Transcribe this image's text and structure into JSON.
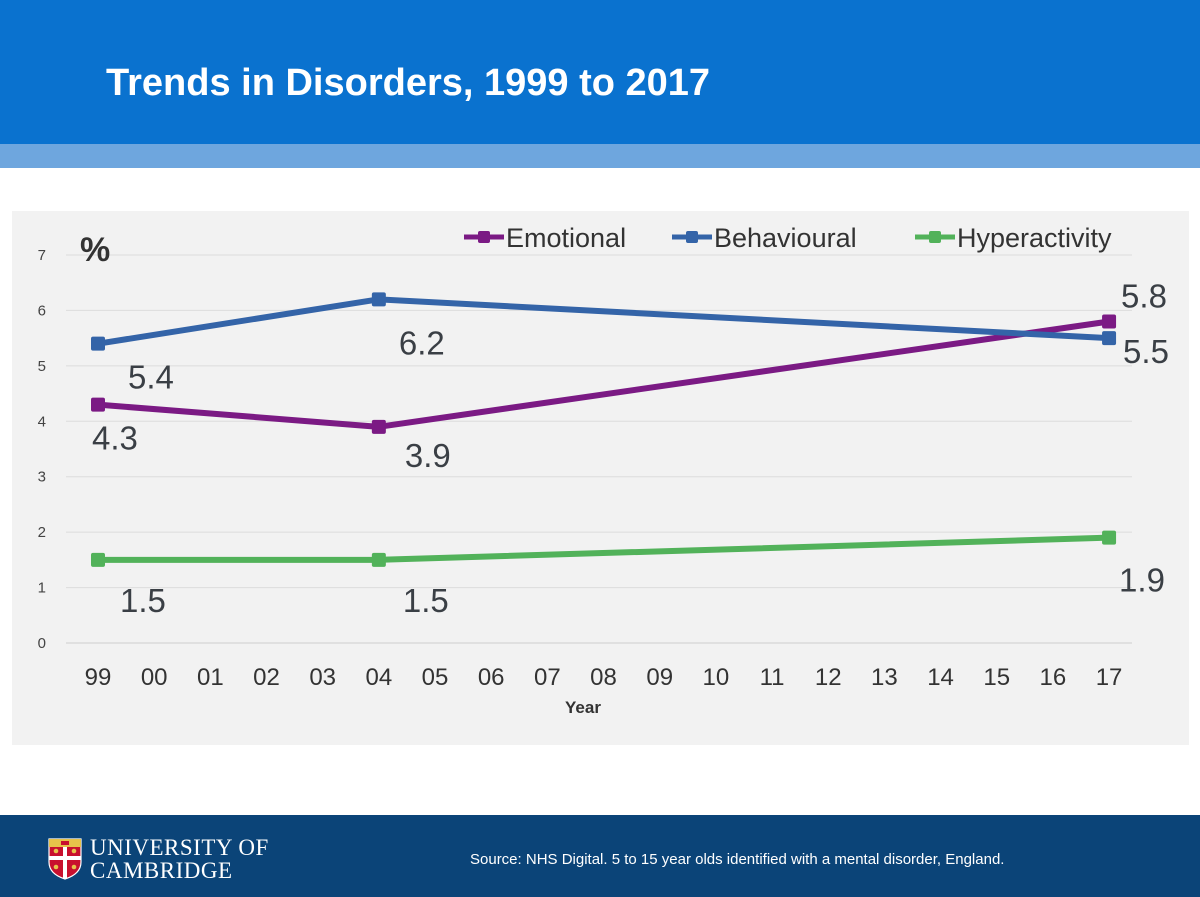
{
  "slide": {
    "title": "Trends in Disorders, 1999 to 2017",
    "source": "Source: NHS Digital. 5 to 15 year olds identified with a mental disorder, England."
  },
  "logo": {
    "line1": "UNIVERSITY OF",
    "line2": "CAMBRIDGE"
  },
  "colors": {
    "header": "#0a72cf",
    "header_stripe": "#6ea6de",
    "footer": "#0b4478",
    "chart_bg": "#f2f2f2",
    "emotional": "#7b1a84",
    "behavioural": "#3464a8",
    "hyperactivity": "#52b25a"
  },
  "chart_data": {
    "type": "line",
    "title": "",
    "xlabel": "Year",
    "ylabel": "%",
    "ylim": [
      0,
      7
    ],
    "yticks": [
      0,
      1,
      2,
      3,
      4,
      5,
      6,
      7
    ],
    "categories": [
      "99",
      "00",
      "01",
      "02",
      "03",
      "04",
      "05",
      "06",
      "07",
      "08",
      "09",
      "10",
      "11",
      "12",
      "13",
      "14",
      "15",
      "16",
      "17"
    ],
    "grid": true,
    "legend": "top-right",
    "series": [
      {
        "name": "Emotional",
        "color": "#7b1a84",
        "points": [
          {
            "x": "99",
            "y": 4.3,
            "label": "4.3"
          },
          {
            "x": "04",
            "y": 3.9,
            "label": "3.9"
          },
          {
            "x": "17",
            "y": 5.8,
            "label": "5.8"
          }
        ]
      },
      {
        "name": "Behavioural",
        "color": "#3464a8",
        "points": [
          {
            "x": "99",
            "y": 5.4,
            "label": "5.4"
          },
          {
            "x": "04",
            "y": 6.2,
            "label": "6.2"
          },
          {
            "x": "17",
            "y": 5.5,
            "label": "5.5"
          }
        ]
      },
      {
        "name": "Hyperactivity",
        "color": "#52b25a",
        "points": [
          {
            "x": "99",
            "y": 1.5,
            "label": "1.5"
          },
          {
            "x": "04",
            "y": 1.5,
            "label": "1.5"
          },
          {
            "x": "17",
            "y": 1.9,
            "label": "1.9"
          }
        ]
      }
    ]
  }
}
